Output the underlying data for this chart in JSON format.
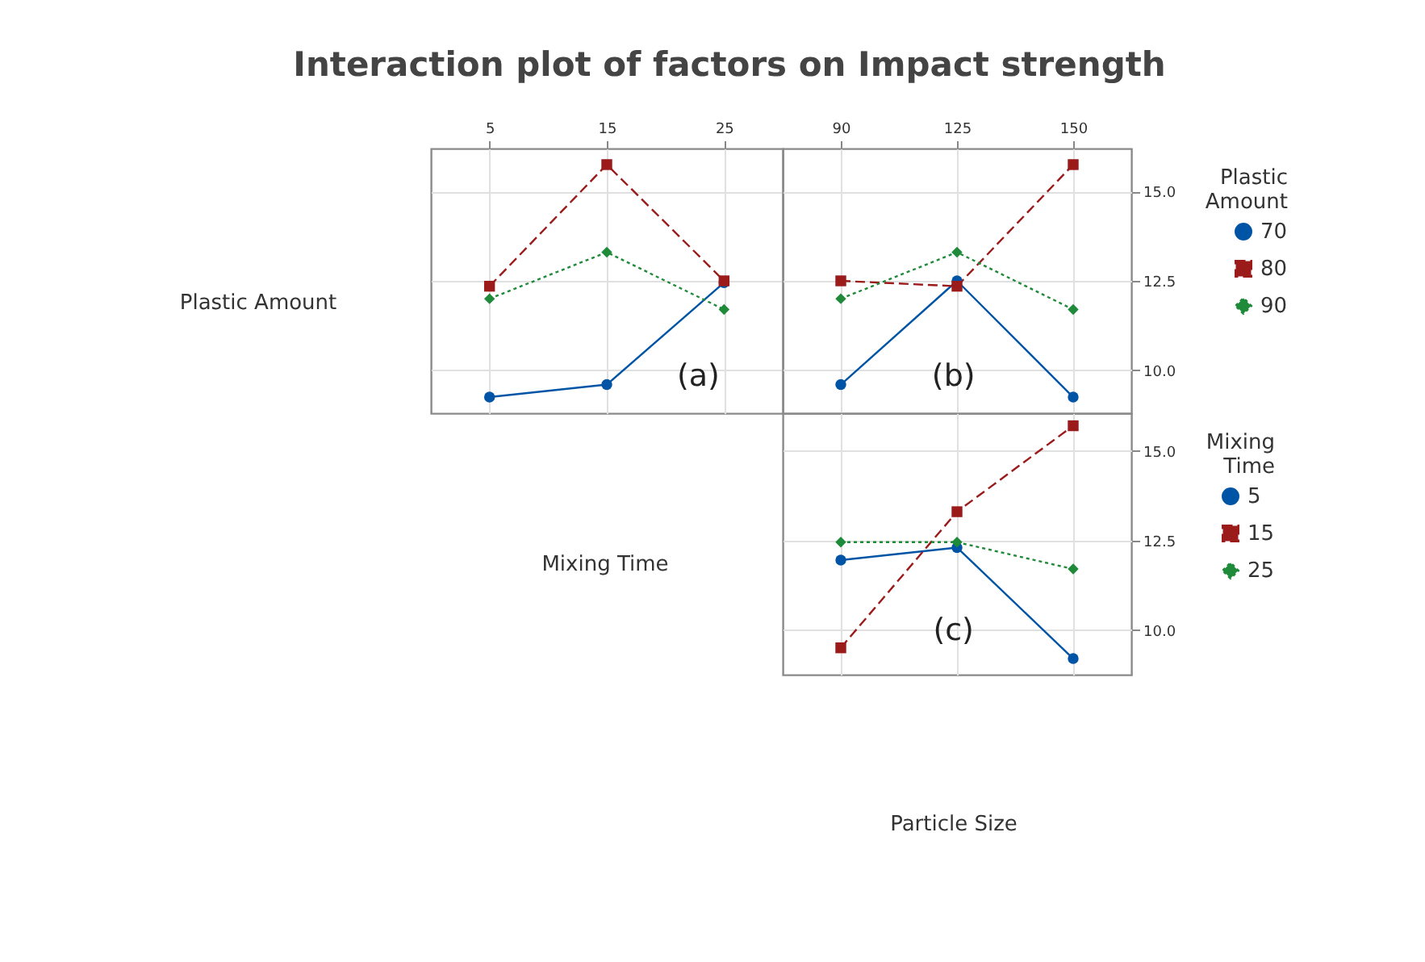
{
  "chart_data": [
    {
      "type": "line",
      "title": "Interaction plot of factors on Impact strength",
      "ylabel": "Plastic Amount",
      "xlabel": "Mixing Time",
      "categories": [
        "5",
        "15",
        "25"
      ],
      "ylim": [
        8.8,
        16.2
      ],
      "yticks": [
        10,
        12.5,
        15
      ],
      "grid": true,
      "tick_labels": "x",
      "annotations": [
        "(a)"
      ],
      "series": [
        {
          "color": "#0054a6",
          "marker": "circle",
          "line_style": "solid",
          "values": [
            9.25,
            9.6,
            12.45
          ]
        },
        {
          "color": "#9b1b1b",
          "marker": "square",
          "line_style": "dashed",
          "values": [
            12.35,
            15.75,
            12.5
          ]
        },
        {
          "color": "#1f8a3a",
          "marker": "diamond",
          "line_style": "dotted",
          "values": [
            12.0,
            13.3,
            11.7
          ]
        }
      ]
    },
    {
      "type": "line",
      "categories": [
        "90",
        "125",
        "150"
      ],
      "ylim": [
        8.8,
        16.2
      ],
      "yticks": [
        {
          "value": 10,
          "label": "10.0"
        },
        {
          "value": 12.5,
          "label": "12.5"
        },
        {
          "value": 15,
          "label": "15.0"
        }
      ],
      "grid": true,
      "legend": "right",
      "legend_title": "Plastic Amount",
      "annotations": [
        "(b)"
      ],
      "series": [
        {
          "name": "70",
          "color": "#0054a6",
          "marker": "circle",
          "line_style": "solid",
          "values": [
            9.6,
            12.5,
            9.25
          ]
        },
        {
          "name": "80",
          "color": "#9b1b1b",
          "marker": "square",
          "line_style": "dashed",
          "values": [
            12.5,
            12.35,
            15.75
          ]
        },
        {
          "name": "90",
          "color": "#1f8a3a",
          "marker": "diamond",
          "line_style": "dotted",
          "values": [
            12.0,
            13.3,
            11.7
          ]
        }
      ]
    },
    {
      "type": "line",
      "xlabel": "Particle Size",
      "categories": [
        "90",
        "125",
        "150"
      ],
      "ylim": [
        8.75,
        16.05
      ],
      "yticks": [
        {
          "value": 10,
          "label": "10.0"
        },
        {
          "value": 12.5,
          "label": "12.5"
        },
        {
          "value": 15,
          "label": "15.0"
        }
      ],
      "grid": true,
      "tick_labels": "y",
      "legend": "right",
      "legend_title": "Mixing Time",
      "annotations": [
        "(c)"
      ],
      "series": [
        {
          "name": "5",
          "color": "#0054a6",
          "marker": "circle",
          "line_style": "solid",
          "values": [
            11.95,
            12.3,
            9.2
          ]
        },
        {
          "name": "15",
          "color": "#9b1b1b",
          "marker": "square",
          "line_style": "dashed",
          "values": [
            9.5,
            13.3,
            15.7
          ]
        },
        {
          "name": "25",
          "color": "#1f8a3a",
          "marker": "diamond",
          "line_style": "dotted",
          "values": [
            12.45,
            12.45,
            11.7
          ]
        }
      ]
    }
  ]
}
